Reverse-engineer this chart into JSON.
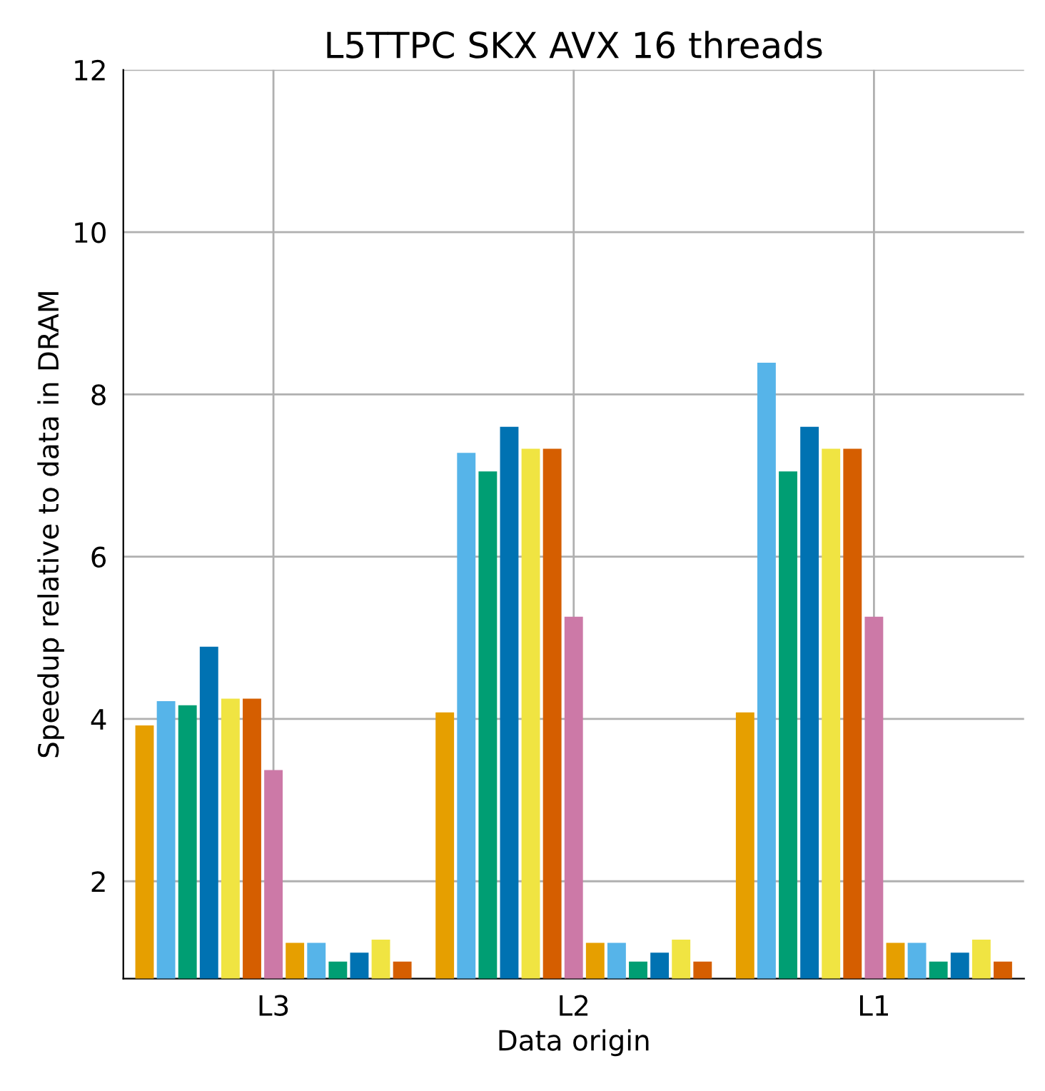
{
  "chart_data": {
    "type": "bar",
    "title": "L5TTPC SKX AVX 16 threads",
    "xlabel": "Data origin",
    "ylabel": "Speedup relative to data in DRAM",
    "categories": [
      "L3",
      "L2",
      "L1"
    ],
    "series": [
      {
        "color": "#e69f00",
        "values": [
          3.92,
          4.08,
          4.08
        ]
      },
      {
        "color": "#56b4e9",
        "values": [
          4.22,
          7.28,
          8.39
        ]
      },
      {
        "color": "#009e73",
        "values": [
          4.17,
          7.05,
          7.05
        ]
      },
      {
        "color": "#0072b2",
        "values": [
          4.89,
          7.6,
          7.6
        ]
      },
      {
        "color": "#f0e442",
        "values": [
          4.25,
          7.33,
          7.33
        ]
      },
      {
        "color": "#d55e00",
        "values": [
          4.25,
          7.33,
          7.33
        ]
      },
      {
        "color": "#cc79a7",
        "values": [
          3.37,
          5.26,
          5.26
        ]
      },
      {
        "color": "#e69f00",
        "values": [
          1.24,
          1.24,
          1.24
        ]
      },
      {
        "color": "#56b4e9",
        "values": [
          1.24,
          1.24,
          1.24
        ]
      },
      {
        "color": "#009e73",
        "values": [
          1.01,
          1.01,
          1.01
        ]
      },
      {
        "color": "#0072b2",
        "values": [
          1.12,
          1.12,
          1.12
        ]
      },
      {
        "color": "#f0e442",
        "values": [
          1.28,
          1.28,
          1.28
        ]
      },
      {
        "color": "#d55e00",
        "values": [
          1.01,
          1.01,
          1.01
        ]
      }
    ],
    "ylim": [
      0.8,
      12
    ],
    "yticks": [
      2,
      4,
      6,
      8,
      10,
      12
    ],
    "grid": true
  }
}
